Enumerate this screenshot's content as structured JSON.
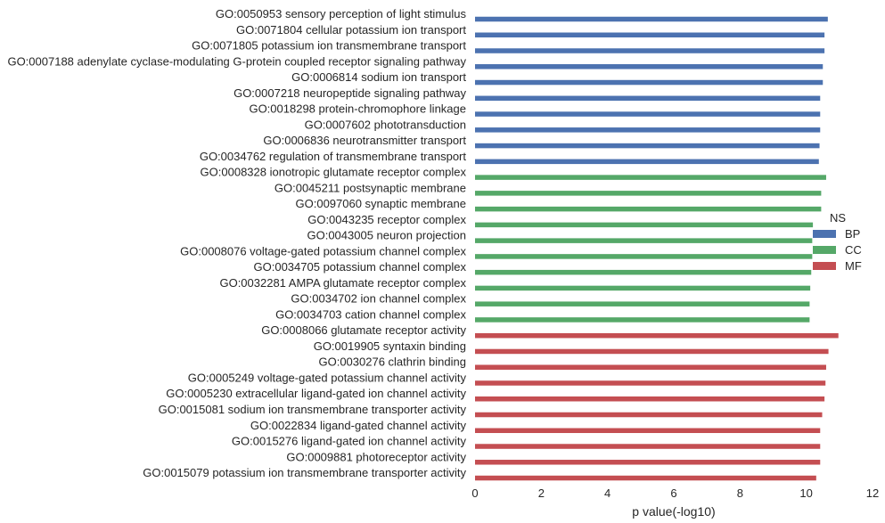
{
  "chart_data": {
    "type": "bar",
    "orientation": "horizontal",
    "xlabel": "p value(-log10)",
    "ylabel": "",
    "title": "",
    "xlim": [
      0,
      12
    ],
    "xticks": [
      "0",
      "2",
      "4",
      "6",
      "8",
      "10",
      "12"
    ],
    "grid": false,
    "legend": {
      "title": "NS",
      "placement": "right",
      "entries": [
        {
          "name": "BP",
          "color": "#4c72b0"
        },
        {
          "name": "CC",
          "color": "#55a868"
        },
        {
          "name": "MF",
          "color": "#c44e52"
        }
      ]
    },
    "categories": [
      "GO:0050953 sensory perception of light stimulus",
      "GO:0071804 cellular potassium ion transport",
      "GO:0071805 potassium ion transmembrane transport",
      "GO:0007188 adenylate cyclase-modulating G-protein coupled receptor signaling pathway",
      "GO:0006814 sodium ion transport",
      "GO:0007218 neuropeptide signaling pathway",
      "GO:0018298 protein-chromophore linkage",
      "GO:0007602 phototransduction",
      "GO:0006836 neurotransmitter transport",
      "GO:0034762 regulation of transmembrane transport",
      "GO:0008328 ionotropic glutamate receptor complex",
      "GO:0045211 postsynaptic membrane",
      "GO:0097060 synaptic membrane",
      "GO:0043235 receptor complex",
      "GO:0043005 neuron projection",
      "GO:0008076 voltage-gated potassium channel complex",
      "GO:0034705 potassium channel complex",
      "GO:0032281 AMPA glutamate receptor complex",
      "GO:0034702 ion channel complex",
      "GO:0034703 cation channel complex",
      "GO:0008066 glutamate receptor activity",
      "GO:0019905 syntaxin binding",
      "GO:0030276 clathrin binding",
      "GO:0005249 voltage-gated potassium channel activity",
      "GO:0005230 extracellular ligand-gated ion channel activity",
      "GO:0015081 sodium ion transmembrane transporter activity",
      "GO:0022834 ligand-gated channel activity",
      "GO:0015276 ligand-gated ion channel activity",
      "GO:0009881 photoreceptor activity",
      "GO:0015079 potassium ion transmembrane transporter activity"
    ],
    "values": [
      10.65,
      10.55,
      10.55,
      10.5,
      10.5,
      10.42,
      10.42,
      10.42,
      10.4,
      10.38,
      10.6,
      10.45,
      10.45,
      10.2,
      10.18,
      10.18,
      10.15,
      10.12,
      10.1,
      10.1,
      10.97,
      10.67,
      10.6,
      10.58,
      10.55,
      10.48,
      10.42,
      10.42,
      10.42,
      10.3
    ],
    "groups": [
      "BP",
      "BP",
      "BP",
      "BP",
      "BP",
      "BP",
      "BP",
      "BP",
      "BP",
      "BP",
      "CC",
      "CC",
      "CC",
      "CC",
      "CC",
      "CC",
      "CC",
      "CC",
      "CC",
      "CC",
      "MF",
      "MF",
      "MF",
      "MF",
      "MF",
      "MF",
      "MF",
      "MF",
      "MF",
      "MF"
    ]
  }
}
